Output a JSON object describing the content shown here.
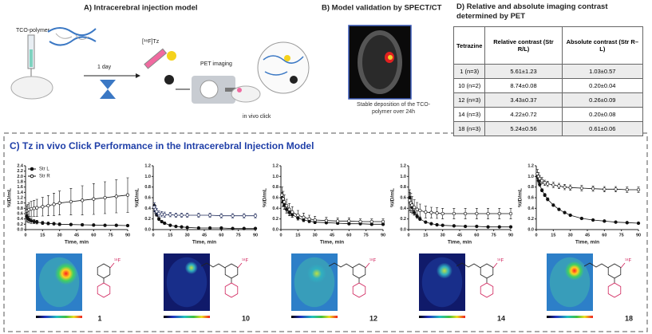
{
  "panel_a": {
    "title": "A) Intracerebral injection model",
    "polymer_label": "TCO-polymer",
    "time_label": "1 day",
    "tracer_label": "[¹⁸F]Tz",
    "imaging_label": "PET imaging",
    "click_label": "in vivo click"
  },
  "panel_b": {
    "title": "B) Model validation by SPECT/CT",
    "caption": "Stable deposition of the TCO-polymer over 24h"
  },
  "panel_d": {
    "title": "D) Relative and absolute imaging contrast determined by PET",
    "table": {
      "header": [
        "Tetrazine",
        "Relative contrast (Str R/L)",
        "Absolute contrast (Str R–L)"
      ],
      "rows": [
        [
          "1 (n=3)",
          "5.61±1.23",
          "1.03±0.57"
        ],
        [
          "10 (n=2)",
          "8.74±0.08",
          "0.20±0.04"
        ],
        [
          "12 (n=3)",
          "3.43±0.37",
          "0.26±0.09"
        ],
        [
          "14 (n=3)",
          "4.22±0.72",
          "0.20±0.08"
        ],
        [
          "18 (n=3)",
          "5.24±0.56",
          "0.61±0.06"
        ]
      ]
    }
  },
  "panel_c": {
    "title": "C) Tz in vivo Click Performance in the Intracerebral Injection Model",
    "compounds": [
      {
        "label": "1",
        "isotope": "¹⁸F"
      },
      {
        "label": "10",
        "isotope": "¹⁸F"
      },
      {
        "label": "12",
        "isotope": "¹⁸F"
      },
      {
        "label": "14",
        "isotope": "¹⁸F"
      },
      {
        "label": "18",
        "isotope": "¹⁸F"
      }
    ]
  },
  "chart_data": [
    {
      "type": "line",
      "x_label": "Time, min",
      "y_label": "%ID/mL",
      "legend": "upper left",
      "x": [
        1,
        2,
        3,
        5,
        7.5,
        10,
        15,
        20,
        25,
        30,
        40,
        50,
        60,
        70,
        80,
        90
      ],
      "xlim": [
        0,
        90
      ],
      "xticks": [
        0,
        15,
        30,
        45,
        60,
        75,
        90
      ],
      "ylim": [
        0,
        2.4
      ],
      "yticks": [
        {
          "value": 0,
          "label": "0.0"
        },
        0.2,
        0.4,
        0.6,
        0.8,
        {
          "value": 1,
          "label": "1.0"
        },
        1.2,
        1.4,
        1.6,
        1.8,
        {
          "value": 2,
          "label": "2.0"
        },
        2.2,
        2.4
      ],
      "series": [
        {
          "name": "Str L",
          "color": "#111111",
          "marker_fill": "#111111",
          "values": [
            0.5,
            0.42,
            0.38,
            0.33,
            0.3,
            0.28,
            0.25,
            0.23,
            0.22,
            0.2,
            0.19,
            0.18,
            0.17,
            0.16,
            0.16,
            0.15
          ],
          "errors": [
            0.2,
            0.15,
            0.12,
            0.1,
            0.08,
            0.07,
            0.06,
            0.05,
            0.05,
            0.05,
            0.04,
            0.04,
            0.04,
            0.04,
            0.04,
            0.04
          ]
        },
        {
          "name": "Str R",
          "color": "#111111",
          "marker_fill": "#ffffff",
          "values": [
            0.7,
            0.72,
            0.75,
            0.78,
            0.8,
            0.82,
            0.86,
            0.9,
            0.95,
            1.0,
            1.05,
            1.1,
            1.15,
            1.2,
            1.25,
            1.3
          ],
          "errors": [
            0.2,
            0.22,
            0.25,
            0.28,
            0.3,
            0.32,
            0.35,
            0.38,
            0.42,
            0.45,
            0.5,
            0.55,
            0.58,
            0.6,
            0.62,
            0.65
          ]
        }
      ]
    },
    {
      "type": "line",
      "x_label": "Time, min",
      "y_label": "%ID/mL",
      "x": [
        1,
        2,
        3,
        5,
        7.5,
        10,
        15,
        20,
        25,
        30,
        40,
        50,
        60,
        70,
        80,
        90
      ],
      "xlim": [
        0,
        90
      ],
      "xticks": [
        0,
        15,
        30,
        45,
        60,
        75,
        90
      ],
      "ylim": [
        0,
        1.2
      ],
      "yticks": [
        {
          "value": 0,
          "label": "0.0"
        },
        0.2,
        0.4,
        0.6,
        0.8,
        {
          "value": 1,
          "label": "1.0"
        },
        1.2
      ],
      "series": [
        {
          "color": "#111111",
          "marker_fill": "#111111",
          "values": [
            0.45,
            0.35,
            0.28,
            0.2,
            0.15,
            0.12,
            0.08,
            0.06,
            0.05,
            0.04,
            0.03,
            0.03,
            0.03,
            0.02,
            0.02,
            0.02
          ],
          "errors": [
            0.05,
            0.04,
            0.03,
            0.03,
            0.02,
            0.02,
            0.02,
            0.01,
            0.01,
            0.01,
            0.01,
            0.01,
            0.01,
            0.01,
            0.01,
            0.01
          ]
        },
        {
          "color": "#1f2a5a",
          "marker_fill": "#ffffff",
          "values": [
            0.42,
            0.38,
            0.34,
            0.3,
            0.29,
            0.28,
            0.28,
            0.27,
            0.27,
            0.27,
            0.27,
            0.27,
            0.26,
            0.26,
            0.26,
            0.26
          ],
          "errors": [
            0.08,
            0.07,
            0.06,
            0.05,
            0.05,
            0.05,
            0.04,
            0.04,
            0.04,
            0.04,
            0.04,
            0.04,
            0.04,
            0.04,
            0.04,
            0.04
          ]
        }
      ]
    },
    {
      "type": "line",
      "x_label": "Time, min",
      "y_label": "%ID/mL",
      "x": [
        1,
        2,
        3,
        5,
        7.5,
        10,
        15,
        20,
        25,
        30,
        40,
        50,
        60,
        70,
        80,
        90
      ],
      "xlim": [
        0,
        90
      ],
      "xticks": [
        0,
        15,
        30,
        45,
        60,
        75,
        90
      ],
      "ylim": [
        0,
        1.2
      ],
      "yticks": [
        {
          "value": 0,
          "label": "0.0"
        },
        0.2,
        0.4,
        0.6,
        0.8,
        {
          "value": 1,
          "label": "1.0"
        },
        1.2
      ],
      "series": [
        {
          "color": "#111111",
          "marker_fill": "#111111",
          "values": [
            0.6,
            0.52,
            0.46,
            0.38,
            0.32,
            0.28,
            0.22,
            0.18,
            0.16,
            0.14,
            0.13,
            0.12,
            0.11,
            0.11,
            0.1,
            0.1
          ],
          "errors": [
            0.1,
            0.09,
            0.08,
            0.07,
            0.06,
            0.05,
            0.04,
            0.03,
            0.03,
            0.03,
            0.02,
            0.02,
            0.02,
            0.02,
            0.02,
            0.02
          ]
        },
        {
          "color": "#111111",
          "marker_fill": "#ffffff",
          "values": [
            0.65,
            0.58,
            0.52,
            0.45,
            0.38,
            0.33,
            0.27,
            0.23,
            0.2,
            0.18,
            0.17,
            0.16,
            0.16,
            0.15,
            0.15,
            0.15
          ],
          "errors": [
            0.15,
            0.14,
            0.13,
            0.12,
            0.11,
            0.1,
            0.09,
            0.08,
            0.07,
            0.07,
            0.06,
            0.06,
            0.06,
            0.05,
            0.05,
            0.05
          ]
        }
      ]
    },
    {
      "type": "line",
      "x_label": "Time, min",
      "y_label": "%ID/mL",
      "x": [
        1,
        2,
        3,
        5,
        7.5,
        10,
        15,
        20,
        25,
        30,
        40,
        50,
        60,
        70,
        80,
        90
      ],
      "xlim": [
        0,
        90
      ],
      "xticks": [
        0,
        15,
        30,
        45,
        60,
        75,
        90
      ],
      "ylim": [
        0,
        1.2
      ],
      "yticks": [
        {
          "value": 0,
          "label": "0.0"
        },
        0.2,
        0.4,
        0.6,
        0.8,
        {
          "value": 1,
          "label": "1.0"
        },
        1.2
      ],
      "series": [
        {
          "color": "#111111",
          "marker_fill": "#111111",
          "values": [
            0.6,
            0.5,
            0.42,
            0.32,
            0.25,
            0.2,
            0.14,
            0.11,
            0.09,
            0.08,
            0.07,
            0.06,
            0.06,
            0.05,
            0.05,
            0.05
          ],
          "errors": [
            0.1,
            0.08,
            0.07,
            0.05,
            0.04,
            0.03,
            0.02,
            0.02,
            0.02,
            0.01,
            0.01,
            0.01,
            0.01,
            0.01,
            0.01,
            0.01
          ]
        },
        {
          "color": "#111111",
          "marker_fill": "#ffffff",
          "values": [
            0.55,
            0.5,
            0.46,
            0.42,
            0.38,
            0.36,
            0.33,
            0.32,
            0.31,
            0.3,
            0.3,
            0.3,
            0.3,
            0.3,
            0.3,
            0.3
          ],
          "errors": [
            0.2,
            0.18,
            0.16,
            0.14,
            0.13,
            0.12,
            0.11,
            0.1,
            0.1,
            0.1,
            0.1,
            0.1,
            0.1,
            0.1,
            0.1,
            0.1
          ]
        }
      ]
    },
    {
      "type": "line",
      "x_label": "Time, min",
      "y_label": "%ID/mL",
      "x": [
        1,
        2,
        3,
        5,
        7.5,
        10,
        15,
        20,
        25,
        30,
        40,
        50,
        60,
        70,
        80,
        90
      ],
      "xlim": [
        0,
        90
      ],
      "xticks": [
        0,
        15,
        30,
        45,
        60,
        75,
        90
      ],
      "ylim": [
        0,
        1.2
      ],
      "yticks": [
        {
          "value": 0,
          "label": "0.0"
        },
        0.2,
        0.4,
        0.6,
        0.8,
        {
          "value": 1,
          "label": "1.0"
        },
        1.2
      ],
      "series": [
        {
          "color": "#111111",
          "marker_fill": "#111111",
          "values": [
            1.0,
            0.92,
            0.85,
            0.74,
            0.65,
            0.57,
            0.46,
            0.38,
            0.32,
            0.27,
            0.21,
            0.18,
            0.16,
            0.14,
            0.13,
            0.12
          ],
          "errors": [
            0.05,
            0.04,
            0.04,
            0.03,
            0.03,
            0.03,
            0.02,
            0.02,
            0.02,
            0.02,
            0.02,
            0.01,
            0.01,
            0.01,
            0.01,
            0.01
          ]
        },
        {
          "color": "#111111",
          "marker_fill": "#ffffff",
          "values": [
            1.05,
            1.0,
            0.96,
            0.92,
            0.88,
            0.86,
            0.84,
            0.82,
            0.8,
            0.79,
            0.78,
            0.77,
            0.76,
            0.76,
            0.75,
            0.75
          ],
          "errors": [
            0.08,
            0.07,
            0.06,
            0.06,
            0.05,
            0.05,
            0.05,
            0.05,
            0.05,
            0.05,
            0.05,
            0.05,
            0.05,
            0.05,
            0.05,
            0.05
          ]
        }
      ]
    }
  ]
}
